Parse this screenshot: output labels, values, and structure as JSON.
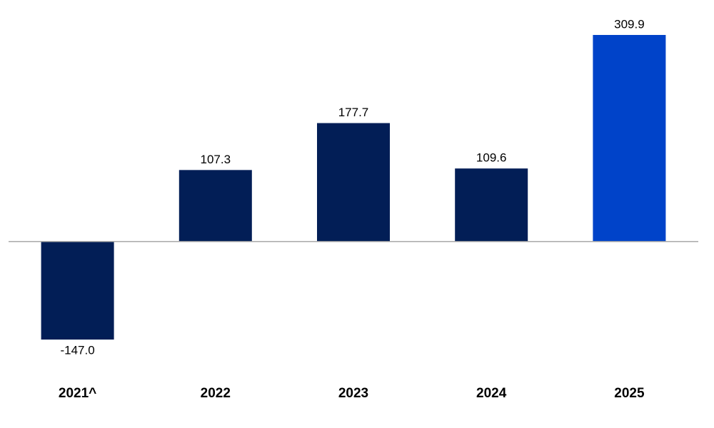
{
  "chart_data": {
    "type": "bar",
    "categories": [
      "2021^",
      "2022",
      "2023",
      "2024",
      "2025"
    ],
    "values": [
      -147.0,
      107.3,
      177.7,
      109.6,
      309.9
    ],
    "value_labels": [
      "-147.0",
      "107.3",
      "177.7",
      "109.6",
      "309.9"
    ],
    "colors": [
      "#021e56",
      "#021e56",
      "#021e56",
      "#021e56",
      "#0043c9"
    ]
  }
}
